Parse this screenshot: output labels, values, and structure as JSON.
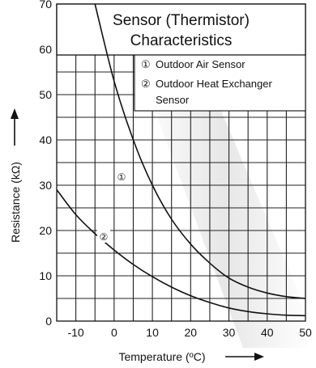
{
  "chart_data": {
    "type": "line",
    "title": "Sensor (Thermistor)",
    "subtitle": "Characteristics",
    "xlabel": "Temperature (ºC)",
    "ylabel": "Resistance (kΩ)",
    "xlim": [
      -15,
      50
    ],
    "ylim": [
      0,
      70
    ],
    "x_ticks": [
      "-10",
      "0",
      "10",
      "20",
      "30",
      "40",
      "50"
    ],
    "y_ticks": [
      "0",
      "10",
      "20",
      "30",
      "40",
      "50",
      "60",
      "70"
    ],
    "grid": true,
    "legend": {
      "position": "top-right",
      "entries": [
        {
          "marker": "①",
          "text": "Outdoor Air Sensor"
        },
        {
          "marker": "②",
          "text": "Outdoor Heat Exchanger",
          "text2": "Sensor"
        }
      ]
    },
    "series": [
      {
        "marker": "①",
        "x": [
          -5,
          0,
          5,
          10,
          15,
          20,
          25,
          30,
          35,
          40,
          45,
          50
        ],
        "y": [
          70,
          53,
          40,
          30,
          22.5,
          17,
          12.8,
          9.5,
          7.5,
          6.2,
          5.4,
          5.0
        ]
      },
      {
        "marker": "②",
        "x": [
          -15,
          -10,
          -5,
          0,
          5,
          10,
          15,
          20,
          25,
          30,
          35,
          40,
          45,
          50
        ],
        "y": [
          29,
          23.5,
          19.3,
          15.7,
          12.5,
          9.8,
          7.5,
          5.6,
          4.1,
          2.9,
          2.1,
          1.6,
          1.3,
          1.2
        ]
      }
    ]
  }
}
